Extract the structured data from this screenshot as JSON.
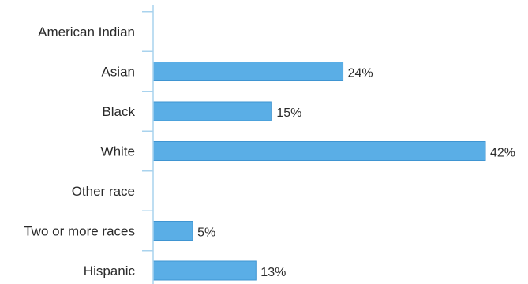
{
  "chart_data": {
    "type": "bar",
    "orientation": "horizontal",
    "categories": [
      "American Indian",
      "Asian",
      "Black",
      "White",
      "Other race",
      "Two or more races",
      "Hispanic"
    ],
    "values": [
      null,
      24,
      15,
      42,
      null,
      5,
      13
    ],
    "value_labels": [
      "",
      "24%",
      "15%",
      "42%",
      "",
      "5%",
      "13%"
    ],
    "xlim": [
      0,
      42
    ],
    "grid": false,
    "legend": "none",
    "title": "",
    "xlabel": "",
    "ylabel": ""
  },
  "colors": {
    "bar_fill": "#5aaee6",
    "bar_stroke": "#3f95d2",
    "axis": "#a9d3ee",
    "text": "#2a2a2a"
  }
}
